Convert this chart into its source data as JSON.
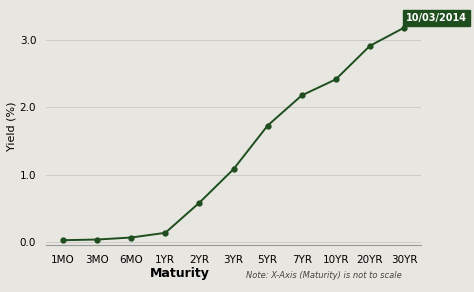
{
  "x_labels": [
    "1MO",
    "3MO",
    "6MO",
    "1YR",
    "2YR",
    "3YR",
    "5YR",
    "7YR",
    "10YR",
    "20YR",
    "30YR"
  ],
  "yields": [
    0.02,
    0.03,
    0.06,
    0.13,
    0.58,
    1.08,
    1.73,
    2.18,
    2.42,
    2.92,
    3.19
  ],
  "line_color": "#1e4d1e",
  "marker_color": "#1e4d1e",
  "background_color": "#e8e6e0",
  "plot_bg_color": "#e8e6e0",
  "grid_color": "#c8c8c8",
  "ylabel": "Yield (%)",
  "xlabel": "Maturity",
  "xlabel_note": "Note: X-Axis (Maturity) is not to scale",
  "annotation_text": "10/03/2014",
  "annotation_bg": "#1e4d1e",
  "annotation_fg": "#ffffff",
  "ylim": [
    -0.05,
    3.5
  ],
  "yticks": [
    0.0,
    1.0,
    2.0,
    3.0
  ],
  "ylabel_fontsize": 8,
  "xlabel_fontsize": 9,
  "note_fontsize": 6,
  "tick_fontsize": 7.5,
  "annotation_fontsize": 7
}
